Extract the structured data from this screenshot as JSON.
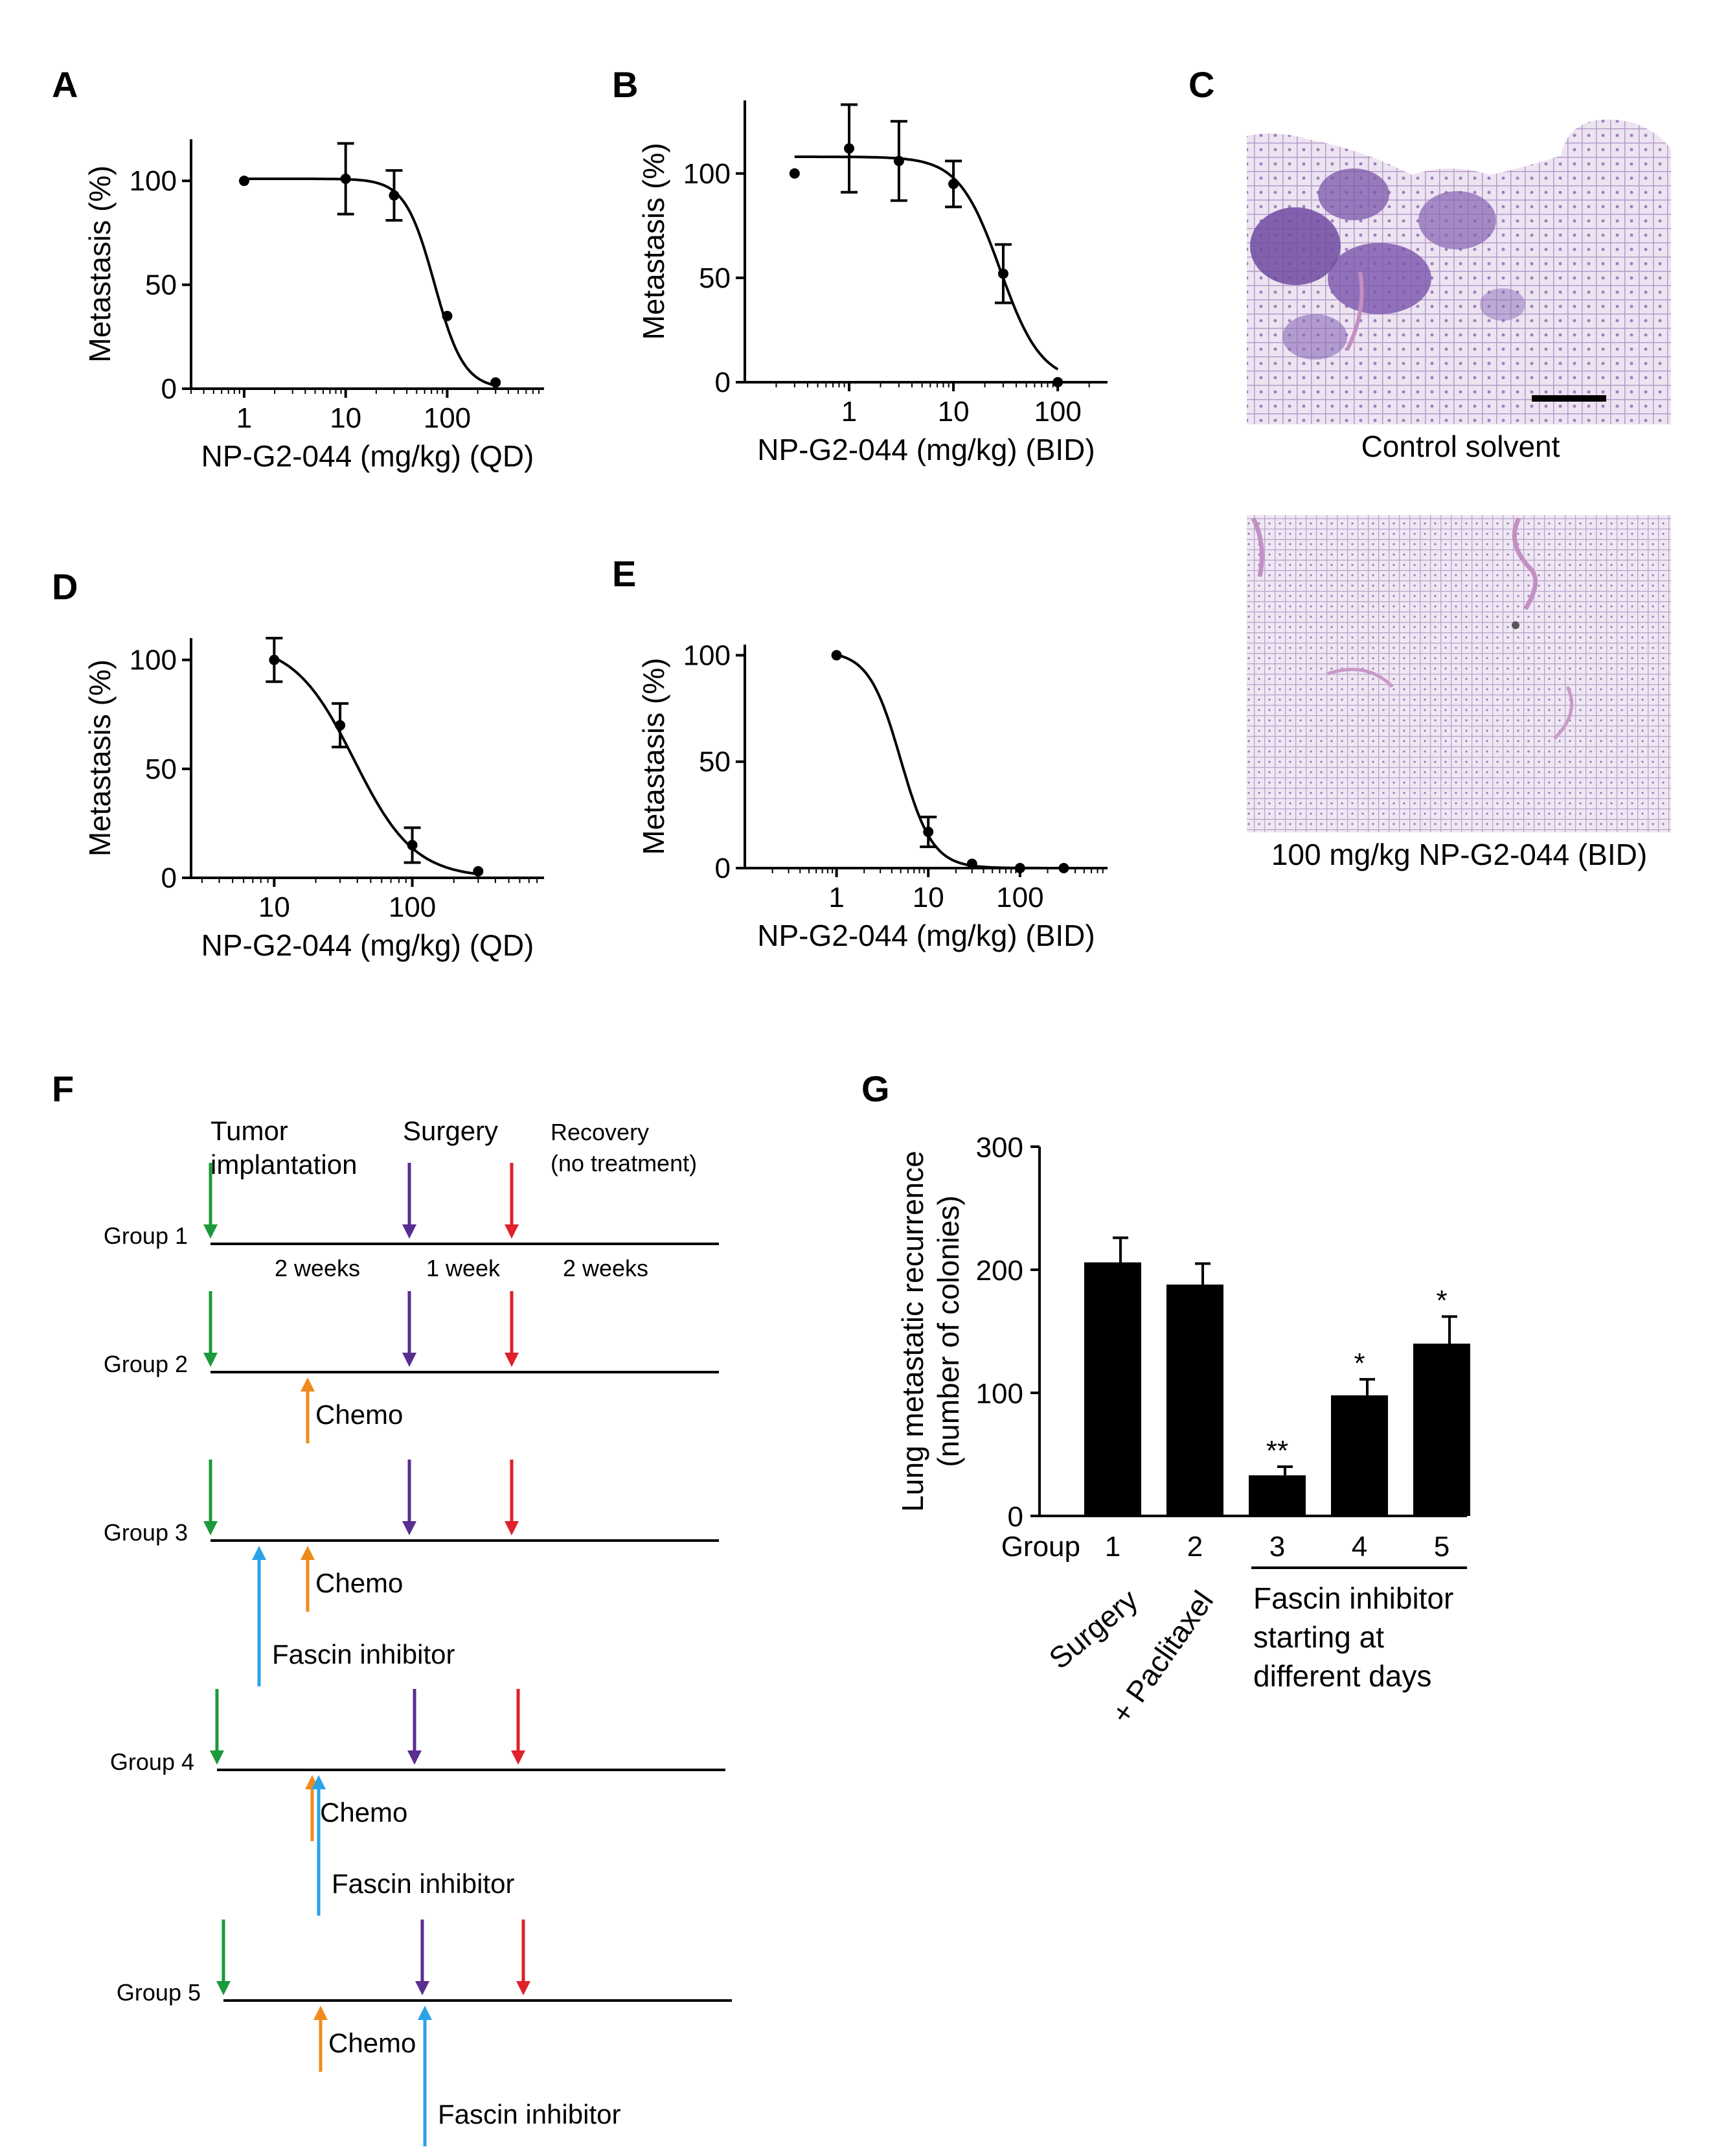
{
  "panels": {
    "A": "A",
    "B": "B",
    "C": "C",
    "D": "D",
    "E": "E",
    "F": "F",
    "G": "G"
  },
  "colors": {
    "tumor": "#1a9a3a",
    "surgery": "#5a2d91",
    "recovery": "#e0202a",
    "chemo": "#f08a1c",
    "fascin": "#29a3e8",
    "tissue_dark": "#7d5aa8",
    "tissue_light": "#ede4f2"
  },
  "chart_data": [
    {
      "id": "A",
      "type": "line",
      "xscale": "log",
      "xlabel": "NP-G2-044 (mg/kg) (QD)",
      "ylabel": "Metastasis (%)",
      "xticks": [
        1,
        10,
        100
      ],
      "yticks": [
        0,
        50,
        100
      ],
      "xlim": [
        0.3,
        900
      ],
      "ylim": [
        0,
        120
      ],
      "points": [
        {
          "x": 1,
          "y": 100,
          "err": 0
        },
        {
          "x": 10,
          "y": 101,
          "err": 17
        },
        {
          "x": 30,
          "y": 93,
          "err": 12
        },
        {
          "x": 100,
          "y": 35,
          "err": 0
        },
        {
          "x": 300,
          "y": 3,
          "err": 0
        }
      ],
      "fit": {
        "top": 101,
        "bottom": 0,
        "ic50": 75,
        "hill": 3
      }
    },
    {
      "id": "B",
      "type": "line",
      "xscale": "log",
      "xlabel": "NP-G2-044 (mg/kg) (BID)",
      "ylabel": "Metastasis (%)",
      "xticks": [
        1,
        10,
        100
      ],
      "yticks": [
        0,
        50,
        100
      ],
      "xlim": [
        0.1,
        300
      ],
      "ylim": [
        0,
        135
      ],
      "points": [
        {
          "x": 0.3,
          "y": 100,
          "err": 0
        },
        {
          "x": 1,
          "y": 112,
          "err": 21
        },
        {
          "x": 3,
          "y": 106,
          "err": 19
        },
        {
          "x": 10,
          "y": 95,
          "err": 11
        },
        {
          "x": 30,
          "y": 52,
          "err": 14
        },
        {
          "x": 100,
          "y": 0,
          "err": 0
        }
      ],
      "fit": {
        "top": 108,
        "bottom": 0,
        "ic50": 28,
        "hill": 2.2
      }
    },
    {
      "id": "D",
      "type": "line",
      "xscale": "log",
      "xlabel": "NP-G2-044 (mg/kg) (QD)",
      "ylabel": "Metastasis (%)",
      "xticks": [
        10,
        100
      ],
      "yticks": [
        0,
        50,
        100
      ],
      "xlim": [
        2.5,
        900
      ],
      "ylim": [
        0,
        110
      ],
      "points": [
        {
          "x": 10,
          "y": 100,
          "err": 10
        },
        {
          "x": 30,
          "y": 70,
          "err": 10
        },
        {
          "x": 100,
          "y": 15,
          "err": 8
        },
        {
          "x": 300,
          "y": 3,
          "err": 0
        }
      ],
      "fit": {
        "top": 108,
        "bottom": 0,
        "ic50": 38,
        "hill": 2
      }
    },
    {
      "id": "E",
      "type": "line",
      "xscale": "log",
      "xlabel": "NP-G2-044 (mg/kg) (BID)",
      "ylabel": "Metastasis (%)",
      "xticks": [
        1,
        10,
        100
      ],
      "yticks": [
        0,
        50,
        100
      ],
      "xlim": [
        0.1,
        900
      ],
      "ylim": [
        0,
        105
      ],
      "points": [
        {
          "x": 1,
          "y": 100,
          "err": 0
        },
        {
          "x": 10,
          "y": 17,
          "err": 7
        },
        {
          "x": 30,
          "y": 2,
          "err": 0
        },
        {
          "x": 100,
          "y": 0,
          "err": 0
        },
        {
          "x": 300,
          "y": 0,
          "err": 0
        }
      ],
      "fit": {
        "top": 102,
        "bottom": 0,
        "ic50": 5,
        "hill": 2.5
      }
    },
    {
      "id": "G",
      "type": "bar",
      "ylabel": [
        "Lung metastatic recurrence",
        "(number of colonies)"
      ],
      "xlabel": "Group",
      "categories": [
        "1",
        "2",
        "3",
        "4",
        "5"
      ],
      "values": [
        206,
        188,
        33,
        98,
        140
      ],
      "errors": [
        20,
        17,
        7,
        13,
        22
      ],
      "significance": [
        "",
        "",
        "**",
        "*",
        "*"
      ],
      "yticks": [
        0,
        100,
        200,
        300
      ],
      "ylim": [
        0,
        300
      ],
      "group_labels": [
        "Surgery",
        "+ Paclitaxel"
      ],
      "bracket_text": [
        "Fascin inhibitor",
        "starting at",
        "different days"
      ]
    }
  ],
  "micrographs": {
    "top_caption": "Control solvent",
    "bottom_caption": "100 mg/kg NP-G2-044 (BID)"
  },
  "timeline": {
    "header_tumor": [
      "Tumor",
      "implantation"
    ],
    "header_surgery": "Surgery",
    "header_recovery": [
      "Recovery",
      "(no treatment)"
    ],
    "durations": [
      "2 weeks",
      "1 week",
      "2 weeks"
    ],
    "chemo_label": "Chemo",
    "fascin_label": "Fascin inhibitor",
    "groups": [
      {
        "label": "Group 1"
      },
      {
        "label": "Group 2"
      },
      {
        "label": "Group 3"
      },
      {
        "label": "Group 4"
      },
      {
        "label": "Group 5"
      }
    ]
  }
}
